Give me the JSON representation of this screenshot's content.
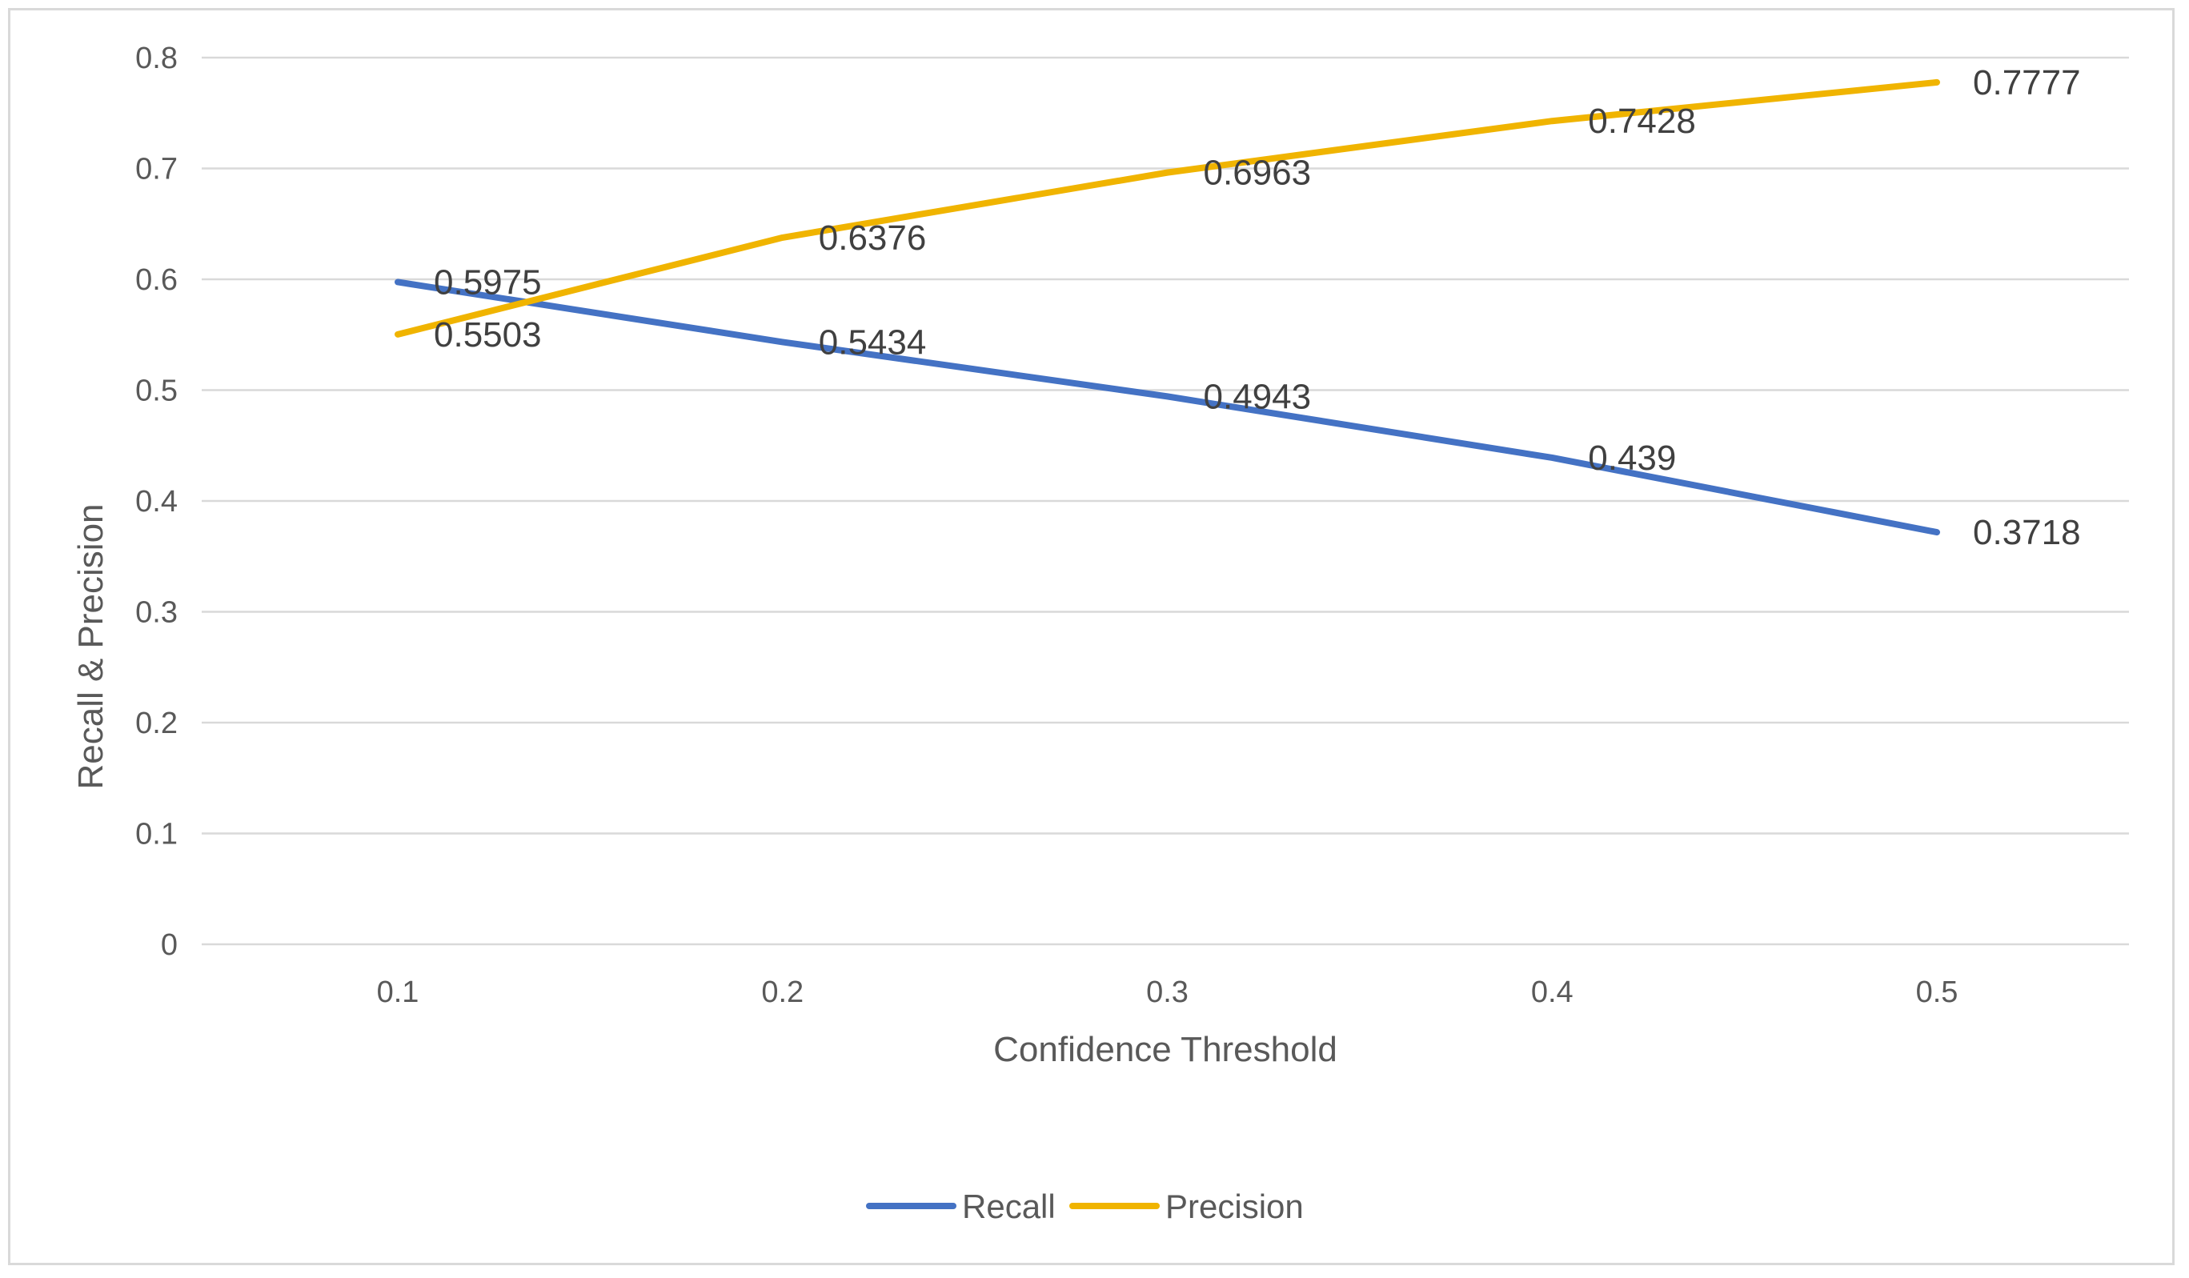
{
  "chart_data": {
    "type": "line",
    "title": "",
    "xlabel": "Confidence Threshold",
    "ylabel": "Recall & Precision",
    "categories": [
      "0.1",
      "0.2",
      "0.3",
      "0.4",
      "0.5"
    ],
    "y_ticks": [
      "0",
      "0.1",
      "0.2",
      "0.3",
      "0.4",
      "0.5",
      "0.6",
      "0.7",
      "0.8"
    ],
    "ylim": [
      0,
      0.8
    ],
    "grid": true,
    "legend_position": "bottom",
    "series": [
      {
        "name": "Recall",
        "color": "#4472C4",
        "values": [
          0.5975,
          0.5434,
          0.4943,
          0.439,
          0.3718
        ],
        "labels": [
          "0.5975",
          "0.5434",
          "0.4943",
          "0.439",
          "0.3718"
        ]
      },
      {
        "name": "Precision",
        "color": "#F0B400",
        "values": [
          0.5503,
          0.6376,
          0.6963,
          0.7428,
          0.7777
        ],
        "labels": [
          "0.5503",
          "0.6376",
          "0.6963",
          "0.7428",
          "0.7777"
        ]
      }
    ]
  }
}
